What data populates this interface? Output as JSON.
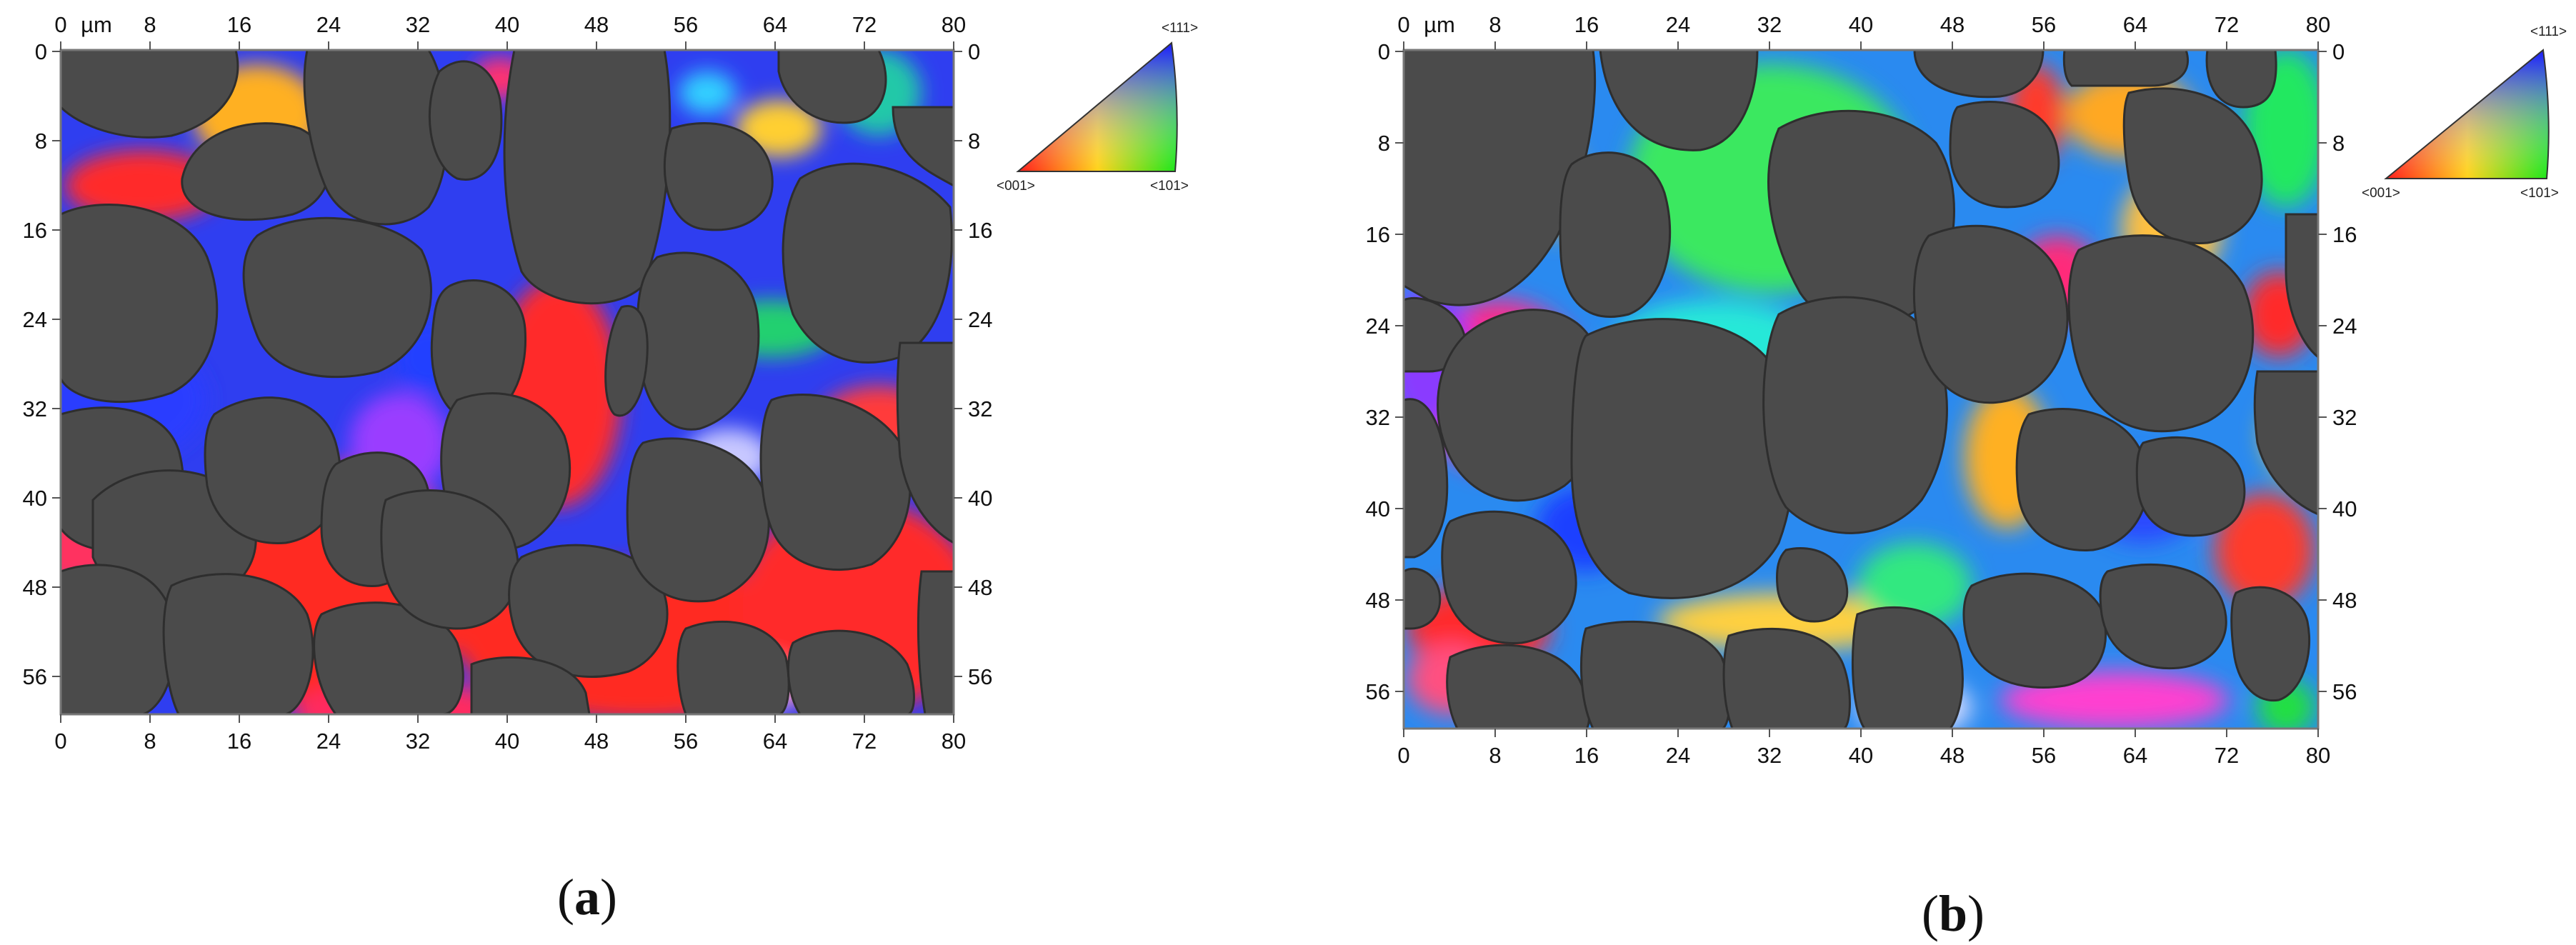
{
  "figure": {
    "panels": [
      {
        "id": "a",
        "caption_open": "(",
        "caption_letter": "a",
        "caption_close": ")",
        "axis_unit": "µm",
        "x_ticks": [
          "0",
          "8",
          "16",
          "24",
          "32",
          "40",
          "48",
          "56",
          "64",
          "72",
          "80"
        ],
        "y_ticks": [
          "0",
          "8",
          "16",
          "24",
          "32",
          "40",
          "48",
          "56"
        ],
        "legend": {
          "top": "<111>",
          "left": "<001>",
          "right": "<101>"
        }
      },
      {
        "id": "b",
        "caption_open": "(",
        "caption_letter": "b",
        "caption_close": ")",
        "axis_unit": "µm",
        "x_ticks": [
          "0",
          "8",
          "16",
          "24",
          "32",
          "40",
          "48",
          "56",
          "64",
          "72",
          "80"
        ],
        "y_ticks": [
          "0",
          "8",
          "16",
          "24",
          "32",
          "40",
          "48",
          "56"
        ],
        "legend": {
          "top": "<111>",
          "left": "<001>",
          "right": "<101>"
        }
      }
    ],
    "colors": {
      "grain": "#4a4a4a",
      "ipf_001": "#ff2020",
      "ipf_101": "#18e018",
      "ipf_111": "#1a22ff"
    }
  }
}
